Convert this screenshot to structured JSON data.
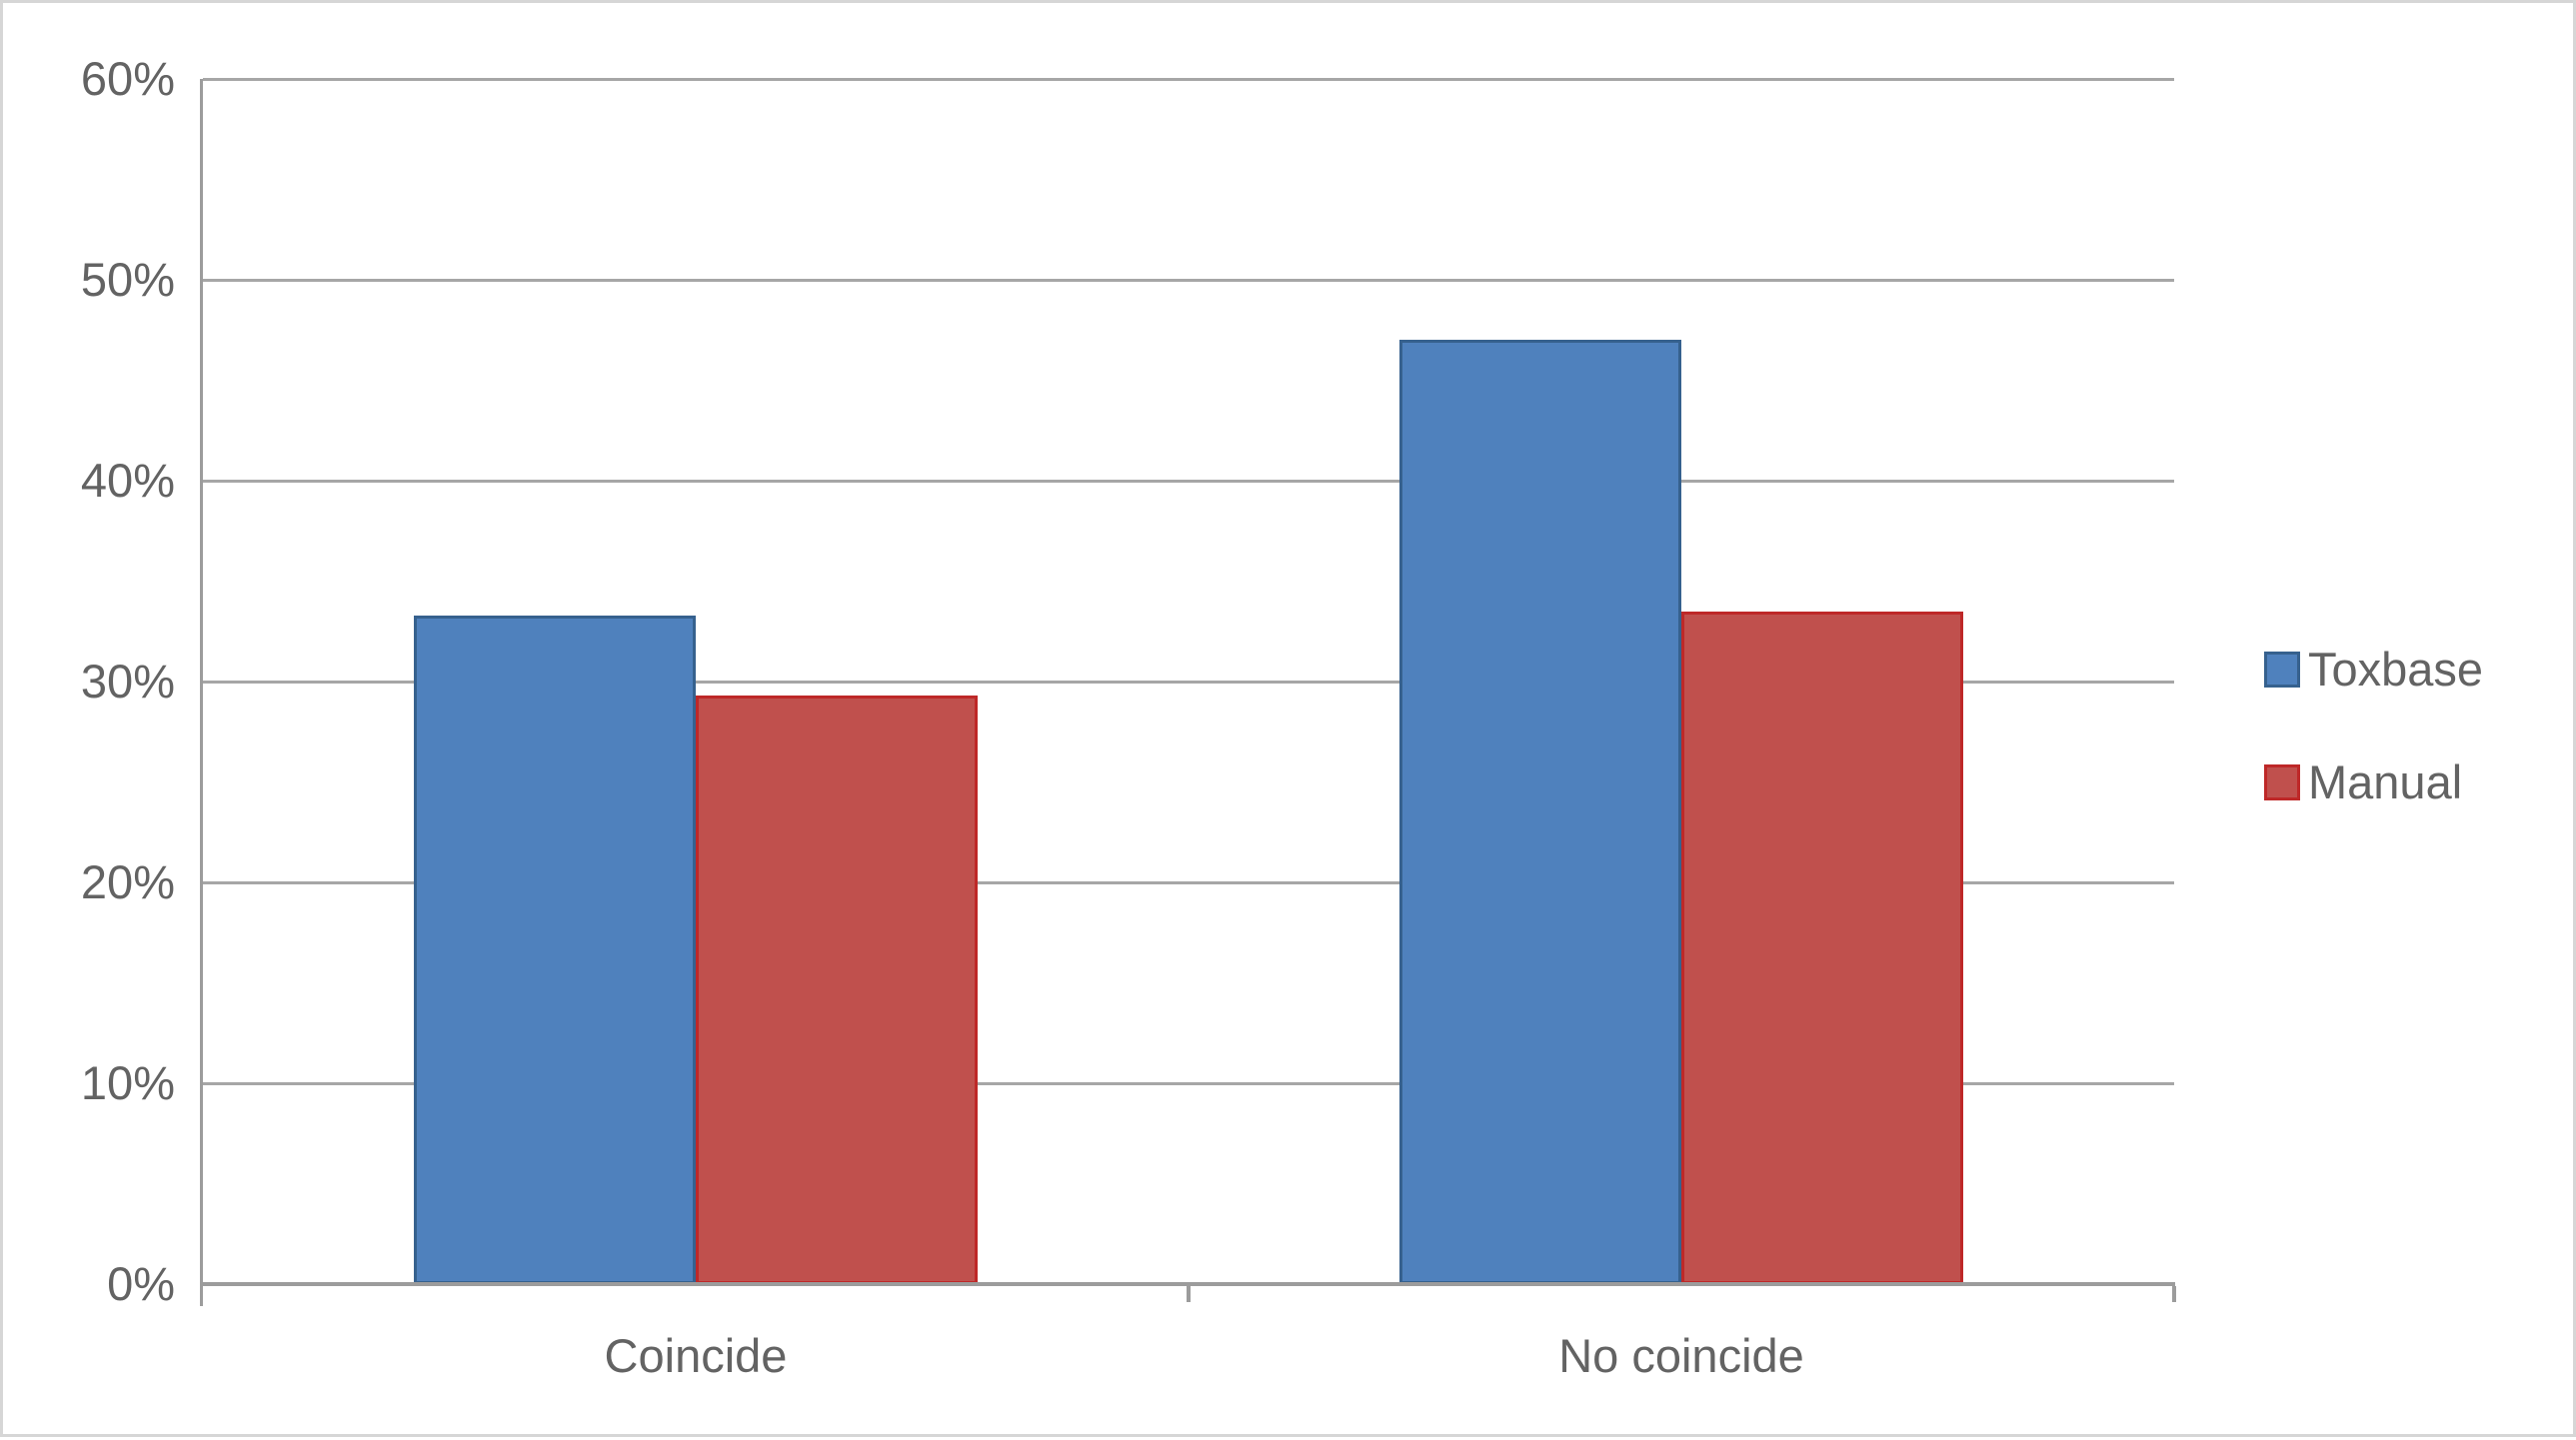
{
  "chart_data": {
    "type": "bar",
    "title": "",
    "xlabel": "",
    "ylabel": "",
    "categories": [
      "Coincide",
      "No coincide"
    ],
    "series": [
      {
        "name": "Toxbase",
        "values": [
          33.3,
          47.0
        ],
        "fill": "#4F81BD",
        "border": "#36618E"
      },
      {
        "name": "Manual",
        "values": [
          29.3,
          33.5
        ],
        "fill": "#C0504D",
        "border": "#BE2828"
      }
    ],
    "ylim": [
      0,
      60
    ],
    "ytick_step": 10,
    "ytick_labels": [
      "0%",
      "10%",
      "20%",
      "30%",
      "40%",
      "50%",
      "60%"
    ],
    "grid": true,
    "gap_width_ratio": 1.5,
    "legend_position": "right"
  },
  "colors": {
    "background": "#FFFFFF",
    "figure_border": "#D6D6D6",
    "gridline": "#A6A6A6",
    "axis_line": "#9C9C9C",
    "tick_text": "#636363"
  }
}
